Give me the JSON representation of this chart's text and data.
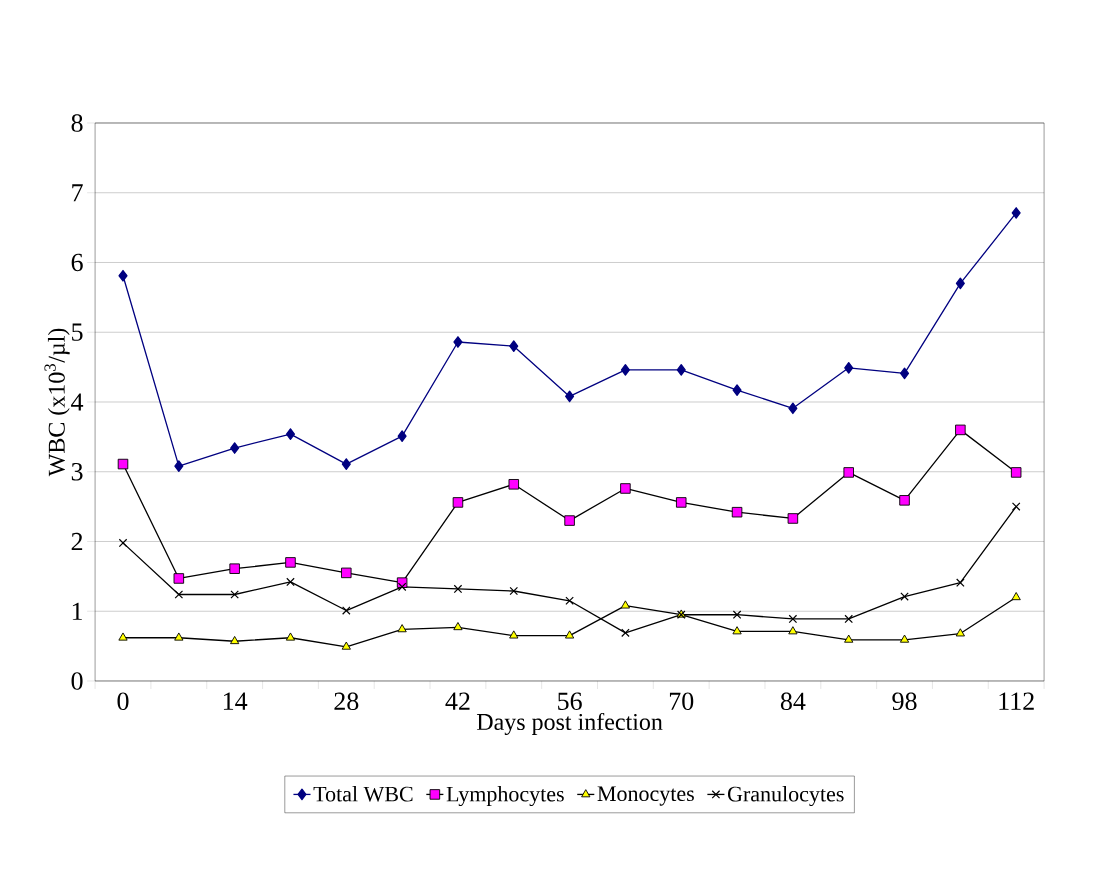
{
  "chart_data": {
    "type": "line",
    "xlabel": "Days post infection",
    "ylabel": "WBC (x10$^{3}$/µl)",
    "categories": [
      "0",
      null,
      "14",
      null,
      "28",
      null,
      "42",
      null,
      "56",
      null,
      "70",
      null,
      "84",
      null,
      "98",
      null,
      "112"
    ],
    "ylim": [
      0,
      8
    ],
    "yticks": [
      0,
      1,
      2,
      3,
      4,
      5,
      6,
      7,
      8
    ],
    "grid": "y",
    "legend": "bottom",
    "series": [
      {
        "name": "Total WBC",
        "color": "#000080",
        "marker": "diamond",
        "values": [
          5.81,
          3.08,
          3.34,
          3.54,
          3.11,
          3.51,
          4.86,
          4.8,
          4.08,
          4.46,
          4.46,
          4.17,
          3.91,
          4.49,
          4.41,
          5.7,
          6.71
        ]
      },
      {
        "name": "Lymphocytes",
        "color": "#ff00ff",
        "marker": "square",
        "values": [
          3.11,
          1.47,
          1.61,
          1.7,
          1.55,
          1.41,
          2.56,
          2.82,
          2.3,
          2.76,
          2.56,
          2.42,
          2.33,
          2.99,
          2.59,
          3.6,
          2.99
        ]
      },
      {
        "name": "Monocytes",
        "color": "#ffff00",
        "marker": "triangle",
        "values": [
          0.62,
          0.62,
          0.57,
          0.62,
          0.49,
          0.74,
          0.77,
          0.65,
          0.65,
          1.08,
          0.95,
          0.71,
          0.71,
          0.59,
          0.59,
          0.68,
          1.2
        ]
      },
      {
        "name": "Granulocytes",
        "color": "#000000",
        "marker": "cross",
        "values": [
          1.98,
          1.24,
          1.24,
          1.42,
          1.01,
          1.35,
          1.32,
          1.29,
          1.15,
          0.69,
          0.95,
          0.95,
          0.89,
          0.89,
          1.21,
          1.41,
          2.5
        ]
      }
    ]
  }
}
